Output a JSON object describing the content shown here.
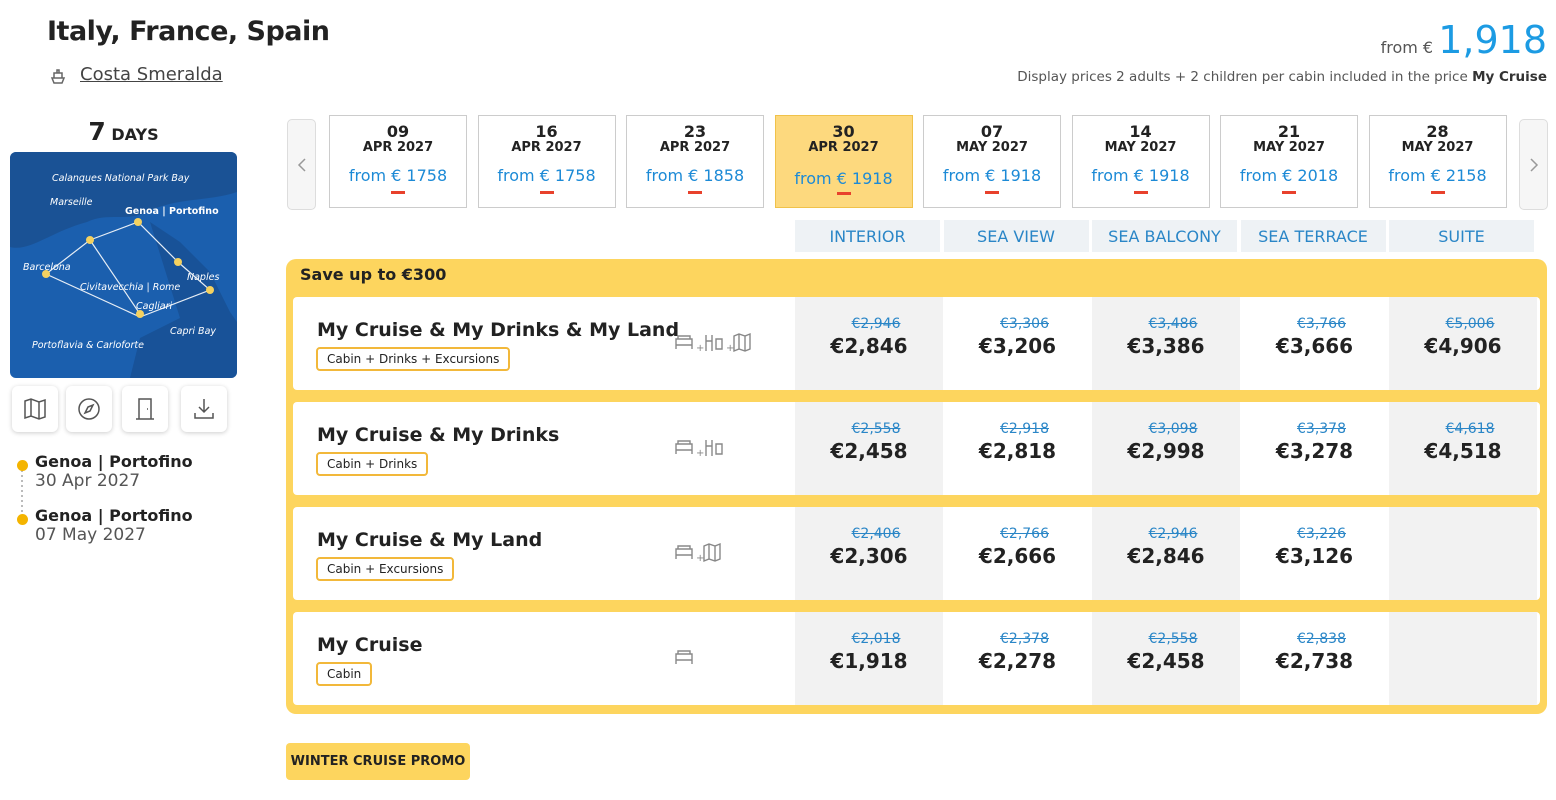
{
  "header": {
    "title": "Italy, France, Spain",
    "ship": "Costa Smeralda",
    "price_prefix": "from €",
    "price": "1,918",
    "note": "Display prices 2 adults + 2 children per cabin included in the price",
    "note_bold": "My Cruise"
  },
  "sidebar": {
    "days_number": "7",
    "days_label": "DAYS",
    "map_labels": [
      "Calanques National Park Bay",
      "Marseille",
      "Genoa | Portofino",
      "Barcelona",
      "Naples",
      "Civitavecchia | Rome",
      "Cagliari",
      "Capri Bay",
      "Portoflavia & Carloforte"
    ],
    "itinerary": [
      {
        "port": "Genoa | Portofino",
        "date": "30 Apr 2027"
      },
      {
        "port": "Genoa | Portofino",
        "date": "07 May 2027"
      }
    ]
  },
  "dates": [
    {
      "day": "09",
      "month": "APR 2027",
      "price": "from € 1758"
    },
    {
      "day": "16",
      "month": "APR 2027",
      "price": "from € 1758"
    },
    {
      "day": "23",
      "month": "APR 2027",
      "price": "from € 1858"
    },
    {
      "day": "30",
      "month": "APR 2027",
      "price": "from € 1918"
    },
    {
      "day": "07",
      "month": "MAY 2027",
      "price": "from € 1918"
    },
    {
      "day": "14",
      "month": "MAY 2027",
      "price": "from € 1918"
    },
    {
      "day": "21",
      "month": "MAY 2027",
      "price": "from € 2018"
    },
    {
      "day": "28",
      "month": "MAY 2027",
      "price": "from € 2158"
    }
  ],
  "selected_date": 3,
  "cabin_types": [
    "INTERIOR",
    "SEA VIEW",
    "SEA BALCONY",
    "SEA TERRACE",
    "SUITE"
  ],
  "promo_title": "Save up to €300",
  "packages": [
    {
      "name": "My Cruise & My Drinks & My Land",
      "tag": "Cabin + Drinks + Excursions",
      "old_prices": [
        "€2,946",
        "€3,306",
        "€3,486",
        "€3,766",
        "€5,006"
      ],
      "prices": [
        "€2,846",
        "€3,206",
        "€3,386",
        "€3,666",
        "€4,906"
      ]
    },
    {
      "name": "My Cruise & My Drinks",
      "tag": "Cabin + Drinks",
      "old_prices": [
        "€2,558",
        "€2,918",
        "€3,098",
        "€3,378",
        "€4,618"
      ],
      "prices": [
        "€2,458",
        "€2,818",
        "€2,998",
        "€3,278",
        "€4,518"
      ]
    },
    {
      "name": "My Cruise & My Land",
      "tag": "Cabin + Excursions",
      "old_prices": [
        "€2,406",
        "€2,766",
        "€2,946",
        "€3,226"
      ],
      "prices": [
        "€2,306",
        "€2,666",
        "€2,846",
        "€3,126"
      ]
    },
    {
      "name": "My Cruise",
      "tag": "Cabin",
      "old_prices": [
        "€2,018",
        "€2,378",
        "€2,558",
        "€2,838"
      ],
      "prices": [
        "€1,918",
        "€2,278",
        "€2,458",
        "€2,738"
      ]
    }
  ],
  "promo_button": "WINTER CRUISE PROMO"
}
